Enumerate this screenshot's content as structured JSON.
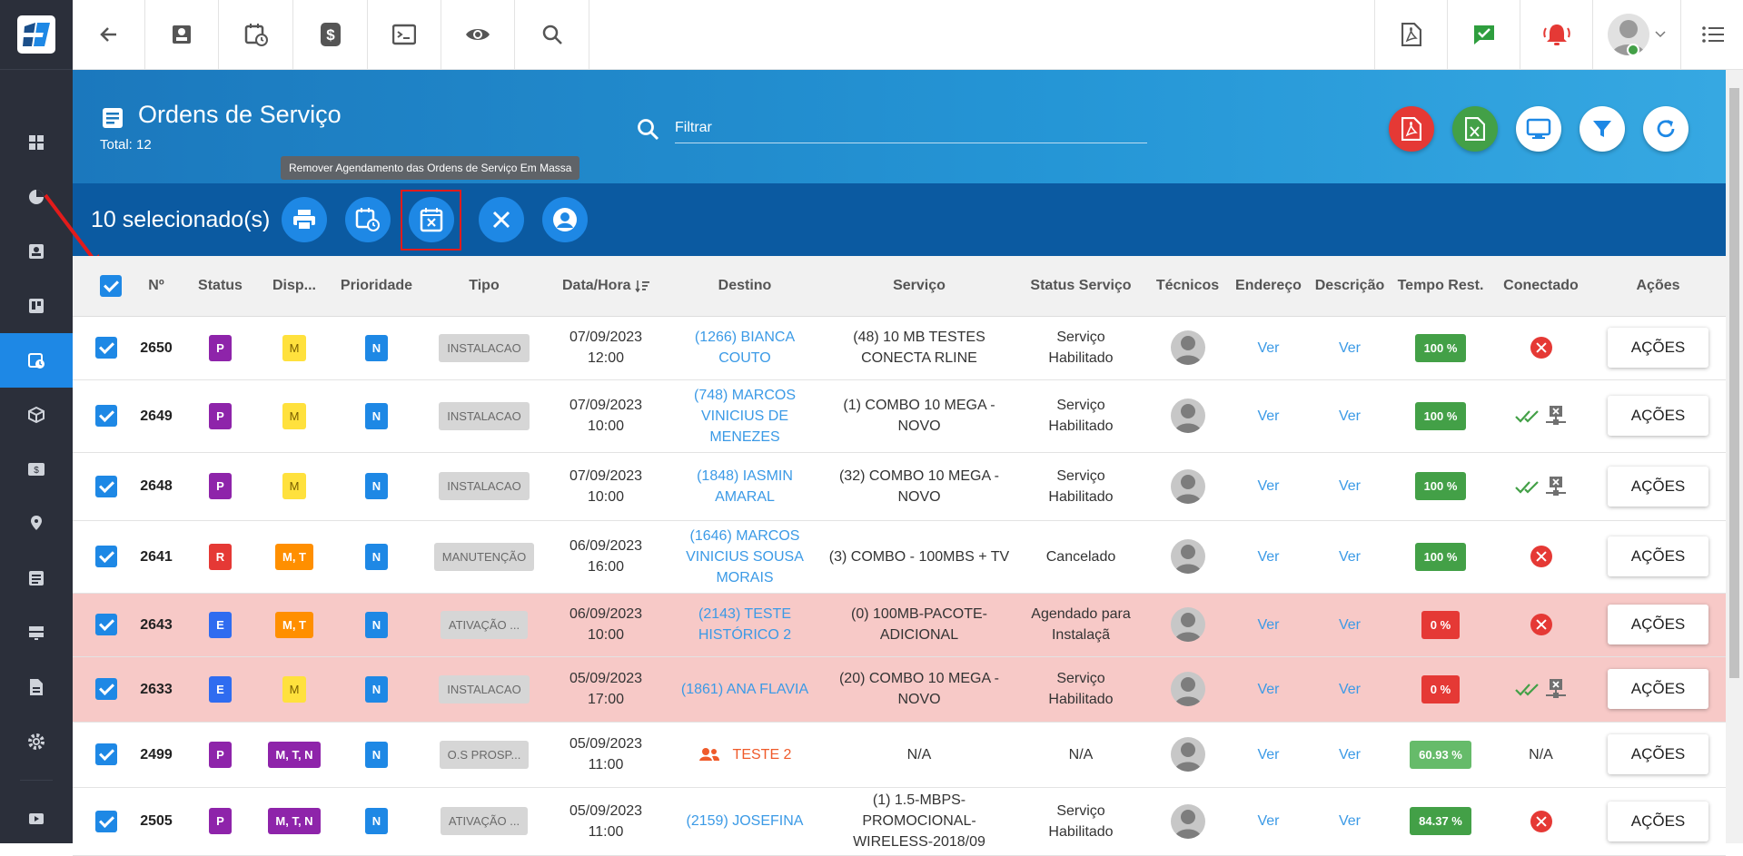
{
  "header": {
    "title": "Ordens de Serviço",
    "total": "Total: 12",
    "filter_placeholder": "Filtrar"
  },
  "tooltip": "Remover Agendamento das Ordens de Serviço Em Massa",
  "selection": {
    "label": "10 selecionado(s)"
  },
  "columns": [
    "Nº",
    "Status",
    "Disp...",
    "Prioridade",
    "Tipo",
    "Data/Hora",
    "Destino",
    "Serviço",
    "Status Serviço",
    "Técnicos",
    "Endereço",
    "Descrição",
    "Tempo Rest.",
    "Conectado",
    "Ações"
  ],
  "rows": [
    {
      "num": "2650",
      "status": "P",
      "disp": "M",
      "prio": "N",
      "tipo": "INSTALACAO",
      "data": "07/09/2023",
      "hora": "12:00",
      "destino": [
        "(1266) BIANCA",
        "COUTO"
      ],
      "servico": [
        "(48) 10 MB TESTES",
        "CONECTA RLINE"
      ],
      "status_servico": [
        "Serviço",
        "Habilitado"
      ],
      "endereco": "Ver",
      "descricao": "Ver",
      "tempo": "100 %",
      "acoes": "AÇÕES"
    },
    {
      "num": "2649",
      "status": "P",
      "disp": "M",
      "prio": "N",
      "tipo": "INSTALACAO",
      "data": "07/09/2023",
      "hora": "10:00",
      "destino": [
        "(748) MARCOS",
        "VINICIUS DE",
        "MENEZES"
      ],
      "servico": [
        "(1) COMBO 10 MEGA -",
        "NOVO"
      ],
      "status_servico": [
        "Serviço",
        "Habilitado"
      ],
      "endereco": "Ver",
      "descricao": "Ver",
      "tempo": "100 %",
      "acoes": "AÇÕES"
    },
    {
      "num": "2648",
      "status": "P",
      "disp": "M",
      "prio": "N",
      "tipo": "INSTALACAO",
      "data": "07/09/2023",
      "hora": "10:00",
      "destino": [
        "(1848) IASMIN",
        "AMARAL"
      ],
      "servico": [
        "(32) COMBO 10 MEGA -",
        "NOVO"
      ],
      "status_servico": [
        "Serviço",
        "Habilitado"
      ],
      "endereco": "Ver",
      "descricao": "Ver",
      "tempo": "100 %",
      "acoes": "AÇÕES"
    },
    {
      "num": "2641",
      "status": "R",
      "disp": "M, T",
      "prio": "N",
      "tipo": "MANUTENÇÃO",
      "data": "06/09/2023",
      "hora": "16:00",
      "destino": [
        "(1646) MARCOS",
        "VINICIUS SOUSA",
        "MORAIS"
      ],
      "servico": [
        "(3) COMBO - 100MBS + TV"
      ],
      "status_servico": [
        "Cancelado"
      ],
      "endereco": "Ver",
      "descricao": "Ver",
      "tempo": "100 %",
      "acoes": "AÇÕES"
    },
    {
      "num": "2643",
      "status": "E",
      "disp": "M, T",
      "prio": "N",
      "tipo": "ATIVAÇÃO ...",
      "data": "06/09/2023",
      "hora": "10:00",
      "destino": [
        "(2143) TESTE",
        "HISTÓRICO 2"
      ],
      "servico": [
        "(0) 100MB-PACOTE-",
        "ADICIONAL"
      ],
      "status_servico": [
        "Agendado para",
        "Instalaçã"
      ],
      "endereco": "Ver",
      "descricao": "Ver",
      "tempo": "0 %",
      "acoes": "AÇÕES"
    },
    {
      "num": "2633",
      "status": "E",
      "disp": "M",
      "prio": "N",
      "tipo": "INSTALACAO",
      "data": "05/09/2023",
      "hora": "17:00",
      "destino": [
        "(1861) ANA FLAVIA"
      ],
      "servico": [
        "(20) COMBO 10 MEGA -",
        "NOVO"
      ],
      "status_servico": [
        "Serviço",
        "Habilitado"
      ],
      "endereco": "Ver",
      "descricao": "Ver",
      "tempo": "0 %",
      "acoes": "AÇÕES"
    },
    {
      "num": "2499",
      "status": "P",
      "disp": "M, T, N",
      "prio": "N",
      "tipo": "O.S PROSP...",
      "data": "05/09/2023",
      "hora": "11:00",
      "destino": [
        "TESTE 2"
      ],
      "servico": [
        "N/A"
      ],
      "status_servico": [
        "N/A"
      ],
      "endereco": "Ver",
      "descricao": "Ver",
      "tempo": "60.93 %",
      "conectado_text": "N/A",
      "acoes": "AÇÕES"
    },
    {
      "num": "2505",
      "status": "P",
      "disp": "M, T, N",
      "prio": "N",
      "tipo": "ATIVAÇÃO ...",
      "data": "05/09/2023",
      "hora": "11:00",
      "destino": [
        "(2159) JOSEFINA"
      ],
      "servico": [
        "(1) 1.5-MBPS-",
        "PROMOCIONAL-",
        "WIRELESS-2018/09"
      ],
      "status_servico": [
        "Serviço",
        "Habilitado"
      ],
      "endereco": "Ver",
      "descricao": "Ver",
      "tempo": "84.37 %",
      "acoes": "AÇÕES"
    }
  ]
}
